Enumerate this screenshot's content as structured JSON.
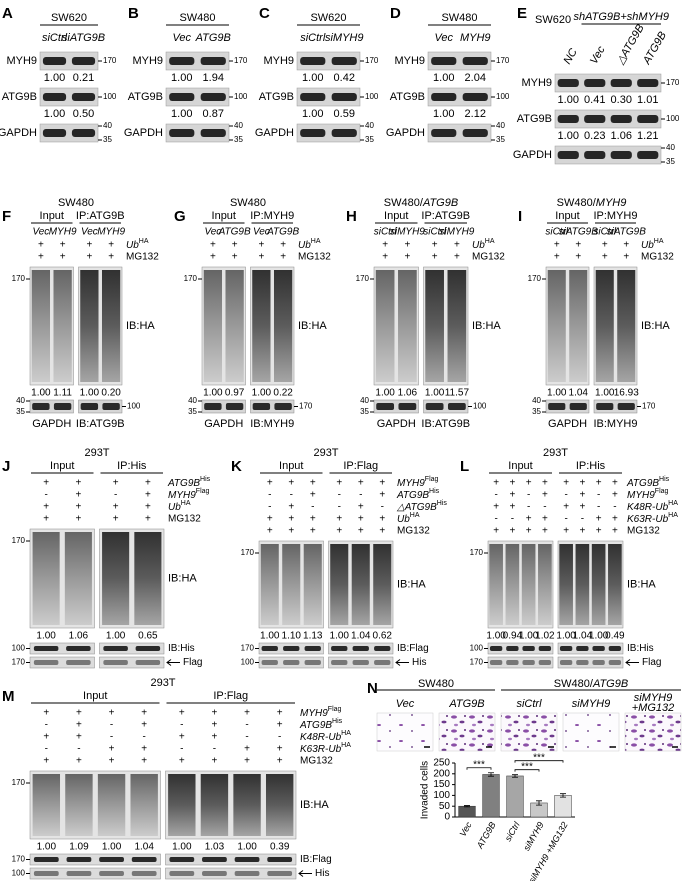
{
  "panels": [
    {
      "letter": "A",
      "title": "SW620",
      "lanes": [
        "siCtrl",
        "siATG9B"
      ],
      "blots": [
        {
          "label": "MYH9",
          "markers": [
            "170"
          ],
          "quant": [
            "1.00",
            "0.21"
          ]
        },
        {
          "label": "ATG9B",
          "markers": [
            "100"
          ],
          "quant": [
            "1.00",
            "0.50"
          ]
        },
        {
          "label": "GAPDH",
          "markers": [
            "40",
            "35"
          ]
        }
      ]
    },
    {
      "letter": "B",
      "title": "SW480",
      "lanes": [
        "Vec",
        "ATG9B"
      ],
      "blots": [
        {
          "label": "MYH9",
          "markers": [
            "170"
          ],
          "quant": [
            "1.00",
            "1.94"
          ]
        },
        {
          "label": "ATG9B",
          "markers": [
            "100"
          ],
          "quant": [
            "1.00",
            "0.87"
          ]
        },
        {
          "label": "GAPDH",
          "markers": [
            "40",
            "35"
          ]
        }
      ]
    },
    {
      "letter": "C",
      "title": "SW620",
      "lanes": [
        "siCtrl",
        "siMYH9"
      ],
      "blots": [
        {
          "label": "MYH9",
          "markers": [
            "170"
          ],
          "quant": [
            "1.00",
            "0.42"
          ]
        },
        {
          "label": "ATG9B",
          "markers": [
            "100"
          ],
          "quant": [
            "1.00",
            "0.59"
          ]
        },
        {
          "label": "GAPDH",
          "markers": [
            "40",
            "35"
          ]
        }
      ]
    },
    {
      "letter": "D",
      "title": "SW480",
      "lanes": [
        "Vec",
        "MYH9"
      ],
      "blots": [
        {
          "label": "MYH9",
          "markers": [
            "170"
          ],
          "quant": [
            "1.00",
            "2.04"
          ]
        },
        {
          "label": "ATG9B",
          "markers": [
            "100"
          ],
          "quant": [
            "1.00",
            "2.12"
          ]
        },
        {
          "label": "GAPDH",
          "markers": [
            "40",
            "35"
          ]
        }
      ]
    },
    {
      "letter": "E",
      "title": "SW620",
      "header": "shATG9B+shMYH9",
      "lanes": [
        "NC",
        "Vec",
        "△ATG9B",
        "ATG9B"
      ],
      "blots": [
        {
          "label": "MYH9",
          "markers": [
            "170"
          ],
          "quant": [
            "1.00",
            "0.41",
            "0.30",
            "1.01"
          ]
        },
        {
          "label": "ATG9B",
          "markers": [
            "100"
          ],
          "quant": [
            "1.00",
            "0.23",
            "1.06",
            "1.21"
          ]
        },
        {
          "label": "GAPDH",
          "markers": [
            "40",
            "35"
          ]
        }
      ]
    },
    {
      "letter": "F",
      "title": "SW480",
      "groups": [
        "Input",
        "IP:ATG9B"
      ],
      "lanes": [
        "Vec",
        "MYH9",
        "Vec",
        "MYH9"
      ],
      "conditions": [
        {
          "signs": [
            "+",
            "+",
            "+",
            "+"
          ],
          "label": [
            {
              "t": "Ub",
              "it": true
            },
            {
              "t": "HA",
              "sup": true
            }
          ]
        },
        {
          "signs": [
            "+",
            "+",
            "+",
            "+"
          ],
          "label": "MG132"
        }
      ],
      "marker": "170",
      "ib": "IB:HA",
      "quant": [
        "1.00",
        "1.11",
        "1.00",
        "0.20"
      ],
      "bottom": [
        {
          "label": "GAPDH",
          "markers": [
            "40",
            "35"
          ]
        },
        {
          "label": "IB:ATG9B",
          "markers": [
            "100"
          ]
        }
      ]
    },
    {
      "letter": "G",
      "title": "SW480",
      "groups": [
        "Input",
        "IP:MYH9"
      ],
      "lanes": [
        "Vec",
        "ATG9B",
        "Vec",
        "ATG9B"
      ],
      "conditions": [
        {
          "signs": [
            "+",
            "+",
            "+",
            "+"
          ],
          "label": [
            {
              "t": "Ub",
              "it": true
            },
            {
              "t": "HA",
              "sup": true
            }
          ]
        },
        {
          "signs": [
            "+",
            "+",
            "+",
            "+"
          ],
          "label": "MG132"
        }
      ],
      "marker": "170",
      "ib": "IB:HA",
      "quant": [
        "1.00",
        "0.97",
        "1.00",
        "0.22"
      ],
      "bottom": [
        {
          "label": "GAPDH",
          "markers": [
            "40",
            "35"
          ]
        },
        {
          "label": "IB:MYH9",
          "markers": [
            "170"
          ]
        }
      ]
    },
    {
      "letter": "H",
      "title": [
        {
          "t": "SW480/"
        },
        {
          "t": "ATG9B",
          "it": true
        }
      ],
      "groups": [
        "Input",
        "IP:ATG9B"
      ],
      "lanes": [
        "siCtrl",
        "siMYH9",
        "siCtrl",
        "siMYH9"
      ],
      "conditions": [
        {
          "signs": [
            "+",
            "+",
            "+",
            "+"
          ],
          "label": [
            {
              "t": "Ub",
              "it": true
            },
            {
              "t": "HA",
              "sup": true
            }
          ]
        },
        {
          "signs": [
            "+",
            "+",
            "+",
            "+"
          ],
          "label": "MG132"
        }
      ],
      "marker": "170",
      "ib": "IB:HA",
      "quant": [
        "1.00",
        "1.06",
        "1.00",
        "11.57"
      ],
      "bottom": [
        {
          "label": "GAPDH",
          "markers": [
            "40",
            "35"
          ]
        },
        {
          "label": "IB:ATG9B",
          "markers": [
            "100"
          ]
        }
      ]
    },
    {
      "letter": "I",
      "title": [
        {
          "t": "SW480/"
        },
        {
          "t": "MYH9",
          "it": true
        }
      ],
      "groups": [
        "Input",
        "IP:MYH9"
      ],
      "lanes": [
        "siCtrl",
        "siATG9B",
        "siCtrl",
        "siATG9B"
      ],
      "conditions": [
        {
          "signs": [
            "+",
            "+",
            "+",
            "+"
          ],
          "label": [
            {
              "t": "Ub",
              "it": true
            },
            {
              "t": "HA",
              "sup": true
            }
          ]
        },
        {
          "signs": [
            "+",
            "+",
            "+",
            "+"
          ],
          "label": "MG132"
        }
      ],
      "marker": "170",
      "ib": "IB:HA",
      "quant": [
        "1.00",
        "1.04",
        "1.00",
        "16.93"
      ],
      "bottom": [
        {
          "label": "GAPDH",
          "markers": [
            "40",
            "35"
          ]
        },
        {
          "label": "IB:MYH9",
          "markers": [
            "170"
          ]
        }
      ]
    },
    {
      "letter": "J",
      "title": "293T",
      "groups": [
        "Input",
        "IP:His"
      ],
      "conditions": [
        {
          "signs": [
            "+",
            "+",
            "+",
            "+"
          ],
          "label": [
            {
              "t": "ATG9B",
              "it": true
            },
            {
              "t": "His",
              "sup": true
            }
          ]
        },
        {
          "signs": [
            "-",
            "+",
            "-",
            "+"
          ],
          "label": [
            {
              "t": "MYH9",
              "it": true
            },
            {
              "t": "Flag",
              "sup": true
            }
          ]
        },
        {
          "signs": [
            "+",
            "+",
            "+",
            "+"
          ],
          "label": [
            {
              "t": "Ub",
              "it": true
            },
            {
              "t": "HA",
              "sup": true
            }
          ]
        },
        {
          "signs": [
            "+",
            "+",
            "+",
            "+"
          ],
          "label": "MG132"
        }
      ],
      "marker": "170",
      "ib": "IB:HA",
      "quant": [
        "1.00",
        "1.06",
        "1.00",
        "0.65"
      ],
      "bottom_rows": [
        {
          "label": "IB:His",
          "marker": "100"
        },
        {
          "label": "Flag",
          "marker": "170",
          "arrow": true
        }
      ]
    },
    {
      "letter": "K",
      "title": "293T",
      "groups": [
        "Input",
        "IP:Flag"
      ],
      "conditions": [
        {
          "signs": [
            "+",
            "+",
            "+",
            "+",
            "+",
            "+"
          ],
          "label": [
            {
              "t": "MYH9",
              "it": true
            },
            {
              "t": "Flag",
              "sup": true
            }
          ]
        },
        {
          "signs": [
            "-",
            "-",
            "+",
            "-",
            "-",
            "+"
          ],
          "label": [
            {
              "t": "ATG9B",
              "it": true
            },
            {
              "t": "His",
              "sup": true
            }
          ]
        },
        {
          "signs": [
            "-",
            "+",
            "-",
            "-",
            "+",
            "-"
          ],
          "label": [
            {
              "t": "△ATG9B",
              "it": true
            },
            {
              "t": "His",
              "sup": true
            }
          ]
        },
        {
          "signs": [
            "+",
            "+",
            "+",
            "+",
            "+",
            "+"
          ],
          "label": [
            {
              "t": "Ub",
              "it": true
            },
            {
              "t": "HA",
              "sup": true
            }
          ]
        },
        {
          "signs": [
            "+",
            "+",
            "+",
            "+",
            "+",
            "+"
          ],
          "label": "MG132"
        }
      ],
      "marker": "170",
      "ib": "IB:HA",
      "quant": [
        "1.00",
        "1.10",
        "1.13",
        "1.00",
        "1.04",
        "0.62"
      ],
      "bottom_rows": [
        {
          "label": "IB:Flag",
          "marker": "170"
        },
        {
          "label": "His",
          "marker": "100",
          "arrow": true
        }
      ]
    },
    {
      "letter": "L",
      "title": "293T",
      "groups": [
        "Input",
        "IP:His"
      ],
      "conditions": [
        {
          "signs": [
            "+",
            "+",
            "+",
            "+",
            "+",
            "+",
            "+",
            "+"
          ],
          "label": [
            {
              "t": "ATG9B",
              "it": true
            },
            {
              "t": "His",
              "sup": true
            }
          ]
        },
        {
          "signs": [
            "-",
            "+",
            "-",
            "+",
            "-",
            "+",
            "-",
            "+"
          ],
          "label": [
            {
              "t": "MYH9",
              "it": true
            },
            {
              "t": "Flag",
              "sup": true
            }
          ]
        },
        {
          "signs": [
            "+",
            "+",
            "-",
            "-",
            "+",
            "+",
            "-",
            "-"
          ],
          "label": [
            {
              "t": "K48R-Ub",
              "it": true
            },
            {
              "t": "HA",
              "sup": true
            }
          ]
        },
        {
          "signs": [
            "-",
            "-",
            "+",
            "+",
            "-",
            "-",
            "+",
            "+"
          ],
          "label": [
            {
              "t": "K63R-Ub",
              "it": true
            },
            {
              "t": "HA",
              "sup": true
            }
          ]
        },
        {
          "signs": [
            "+",
            "+",
            "+",
            "+",
            "+",
            "+",
            "+",
            "+"
          ],
          "label": "MG132"
        }
      ],
      "marker": "170",
      "ib": "IB:HA",
      "quant": [
        "1.00",
        "0.94",
        "1.00",
        "1.02",
        "1.00",
        "1.04",
        "1.00",
        "0.49"
      ],
      "bottom_rows": [
        {
          "label": "IB:His",
          "marker": "100"
        },
        {
          "label": "Flag",
          "marker": "170",
          "arrow": true
        }
      ]
    },
    {
      "letter": "M",
      "title": "293T",
      "groups": [
        "Input",
        "IP:Flag"
      ],
      "conditions": [
        {
          "signs": [
            "+",
            "+",
            "+",
            "+",
            "+",
            "+",
            "+",
            "+"
          ],
          "label": [
            {
              "t": "MYH9",
              "it": true
            },
            {
              "t": "Flag",
              "sup": true
            }
          ]
        },
        {
          "signs": [
            "-",
            "+",
            "-",
            "+",
            "-",
            "+",
            "-",
            "+"
          ],
          "label": [
            {
              "t": "ATG9B",
              "it": true
            },
            {
              "t": "His",
              "sup": true
            }
          ]
        },
        {
          "signs": [
            "+",
            "+",
            "-",
            "-",
            "+",
            "+",
            "-",
            "-"
          ],
          "label": [
            {
              "t": "K48R-Ub",
              "it": true
            },
            {
              "t": "HA",
              "sup": true
            }
          ]
        },
        {
          "signs": [
            "-",
            "-",
            "+",
            "+",
            "-",
            "-",
            "+",
            "+"
          ],
          "label": [
            {
              "t": "K63R-Ub",
              "it": true
            },
            {
              "t": "HA",
              "sup": true
            }
          ]
        },
        {
          "signs": [
            "+",
            "+",
            "+",
            "+",
            "+",
            "+",
            "+",
            "+"
          ],
          "label": "MG132"
        }
      ],
      "marker": "170",
      "ib": "IB:HA",
      "quant": [
        "1.00",
        "1.09",
        "1.00",
        "1.04",
        "1.00",
        "1.03",
        "1.00",
        "0.39"
      ],
      "bottom_rows": [
        {
          "label": "IB:Flag",
          "marker": "170"
        },
        {
          "label": "His",
          "marker": "100",
          "arrow": true
        }
      ]
    },
    {
      "letter": "N",
      "image_groups": [
        {
          "label": "SW480",
          "images": [
            "Vec",
            "ATG9B"
          ]
        },
        {
          "label": [
            {
              "t": "SW480/"
            },
            {
              "t": "ATG9B",
              "it": true
            }
          ],
          "images": [
            "siCtrl",
            "siMYH9",
            [
              "siMYH9",
              "+MG132"
            ]
          ]
        }
      ]
    }
  ],
  "chart_data": {
    "type": "bar",
    "ylabel": "Invaded cells",
    "categories": [
      "Vec",
      "ATG9B",
      "siCtrl",
      "siMYH9",
      "siMYH9 +MG132"
    ],
    "values": [
      50,
      197,
      190,
      65,
      100
    ],
    "errors": [
      3,
      8,
      6,
      10,
      8
    ],
    "colors": [
      "#555555",
      "#808080",
      "#a6a6a6",
      "#c8c8c8",
      "#e2e2e2"
    ],
    "ylim": [
      0,
      250
    ],
    "yticks": [
      0,
      50,
      100,
      150,
      200,
      250
    ],
    "annotations": [
      {
        "text": "***",
        "between": [
          0,
          1
        ]
      },
      {
        "text": "***",
        "between": [
          2,
          3
        ]
      },
      {
        "text": "***",
        "between": [
          2,
          4
        ]
      }
    ]
  }
}
